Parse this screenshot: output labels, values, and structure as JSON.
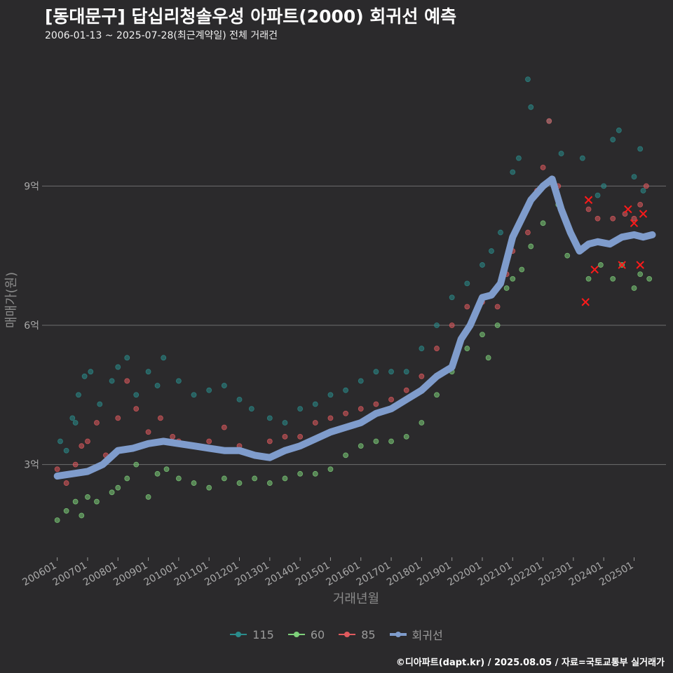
{
  "header": {
    "title": "[동대문구] 답십리청솔우성 아파트(2000) 회귀선 예측",
    "subtitle": "2006-01-13 ~ 2025-07-28(최근계약일) 전체 거래건"
  },
  "footer": {
    "credit": "©디아파트(dapt.kr) / 2025.08.05 / 자료=국토교통부 실거래가"
  },
  "colors": {
    "background": "#2b2a2c",
    "grid": "#6e6e6e",
    "s115": "#2a8c8c",
    "s60": "#7ed07a",
    "s85": "#e05a5e",
    "regression": "#7f9ccc",
    "outlier": "#ff1a1a"
  },
  "chart_data": {
    "type": "scatter",
    "title": "[동대문구] 답십리청솔우성 아파트(2000) 회귀선 예측",
    "subtitle": "2006-01-13 ~ 2025-07-28(최근계약일) 전체 거래건",
    "xlabel": "거래년월",
    "ylabel": "매매가(원)",
    "x_unit": "decimal year",
    "y_unit": "억 원",
    "xlim": [
      2005.5,
      2026.05
    ],
    "ylim": [
      1.0,
      11.8
    ],
    "yticks": [
      3,
      6,
      9
    ],
    "ytick_labels": [
      "3억",
      "6억",
      "9억"
    ],
    "xticks": [
      2006,
      2007,
      2008,
      2009,
      2010,
      2011,
      2012,
      2013,
      2014,
      2015,
      2016,
      2017,
      2018,
      2019,
      2020,
      2021,
      2022,
      2023,
      2024,
      2025
    ],
    "xtick_labels": [
      "200601",
      "200701",
      "200801",
      "200901",
      "201001",
      "201101",
      "201201",
      "201301",
      "201401",
      "201501",
      "201601",
      "201701",
      "201801",
      "201901",
      "202001",
      "202101",
      "202201",
      "202301",
      "202401",
      "202501"
    ],
    "legend": [
      {
        "key": "s115",
        "label": "115"
      },
      {
        "key": "s60",
        "label": "60"
      },
      {
        "key": "s85",
        "label": "85"
      },
      {
        "key": "regression",
        "label": "회귀선"
      }
    ],
    "legend_position": "bottom",
    "regression": {
      "x": [
        2006.0,
        2006.5,
        2007.0,
        2007.5,
        2008.0,
        2008.5,
        2009.0,
        2009.5,
        2010.0,
        2010.5,
        2011.0,
        2011.5,
        2012.0,
        2012.5,
        2013.0,
        2013.5,
        2014.0,
        2014.5,
        2015.0,
        2015.5,
        2016.0,
        2016.5,
        2017.0,
        2017.5,
        2018.0,
        2018.5,
        2019.0,
        2019.3,
        2019.6,
        2020.0,
        2020.3,
        2020.6,
        2021.0,
        2021.3,
        2021.6,
        2022.0,
        2022.3,
        2022.6,
        2022.9,
        2023.2,
        2023.5,
        2023.8,
        2024.2,
        2024.6,
        2025.0,
        2025.3,
        2025.6
      ],
      "y": [
        2.75,
        2.8,
        2.85,
        3.0,
        3.3,
        3.35,
        3.45,
        3.5,
        3.45,
        3.4,
        3.35,
        3.3,
        3.3,
        3.2,
        3.15,
        3.3,
        3.4,
        3.55,
        3.7,
        3.8,
        3.9,
        4.1,
        4.2,
        4.4,
        4.6,
        4.9,
        5.1,
        5.7,
        6.0,
        6.6,
        6.65,
        6.9,
        7.9,
        8.3,
        8.7,
        9.0,
        9.15,
        8.5,
        8.0,
        7.6,
        7.75,
        7.8,
        7.75,
        7.9,
        7.95,
        7.9,
        7.95
      ]
    },
    "series": [
      {
        "name": "115",
        "key": "s115",
        "points": [
          [
            2006.1,
            3.5
          ],
          [
            2006.3,
            3.3
          ],
          [
            2006.5,
            4.0
          ],
          [
            2006.6,
            3.9
          ],
          [
            2006.7,
            4.5
          ],
          [
            2006.9,
            4.9
          ],
          [
            2007.1,
            5.0
          ],
          [
            2007.4,
            4.3
          ],
          [
            2007.8,
            4.8
          ],
          [
            2008.0,
            5.1
          ],
          [
            2008.3,
            5.3
          ],
          [
            2008.6,
            4.5
          ],
          [
            2009.0,
            5.0
          ],
          [
            2009.3,
            4.7
          ],
          [
            2009.5,
            5.3
          ],
          [
            2010.0,
            4.8
          ],
          [
            2010.5,
            4.5
          ],
          [
            2011.0,
            4.6
          ],
          [
            2011.5,
            4.7
          ],
          [
            2012.0,
            4.4
          ],
          [
            2012.4,
            4.2
          ],
          [
            2013.0,
            4.0
          ],
          [
            2013.5,
            3.9
          ],
          [
            2014.0,
            4.2
          ],
          [
            2014.5,
            4.3
          ],
          [
            2015.0,
            4.5
          ],
          [
            2015.5,
            4.6
          ],
          [
            2016.0,
            4.8
          ],
          [
            2016.5,
            5.0
          ],
          [
            2017.0,
            5.0
          ],
          [
            2017.5,
            5.0
          ],
          [
            2018.0,
            5.5
          ],
          [
            2018.5,
            6.0
          ],
          [
            2019.0,
            6.6
          ],
          [
            2019.5,
            6.9
          ],
          [
            2020.0,
            7.3
          ],
          [
            2020.3,
            7.6
          ],
          [
            2020.6,
            8.0
          ],
          [
            2021.0,
            9.3
          ],
          [
            2021.2,
            9.6
          ],
          [
            2021.6,
            10.7
          ],
          [
            2021.5,
            11.3
          ],
          [
            2022.2,
            10.4
          ],
          [
            2022.6,
            9.7
          ],
          [
            2023.3,
            9.6
          ],
          [
            2023.8,
            8.8
          ],
          [
            2024.0,
            9.0
          ],
          [
            2024.3,
            10.0
          ],
          [
            2024.5,
            10.2
          ],
          [
            2025.0,
            9.2
          ],
          [
            2025.2,
            9.8
          ],
          [
            2025.3,
            8.9
          ]
        ]
      },
      {
        "name": "60",
        "key": "s60",
        "points": [
          [
            2006.0,
            1.8
          ],
          [
            2006.3,
            2.0
          ],
          [
            2006.6,
            2.2
          ],
          [
            2006.8,
            1.9
          ],
          [
            2007.0,
            2.3
          ],
          [
            2007.3,
            2.2
          ],
          [
            2007.8,
            2.4
          ],
          [
            2008.0,
            2.5
          ],
          [
            2008.3,
            2.7
          ],
          [
            2008.6,
            3.0
          ],
          [
            2009.0,
            2.3
          ],
          [
            2009.3,
            2.8
          ],
          [
            2009.6,
            2.9
          ],
          [
            2010.0,
            2.7
          ],
          [
            2010.5,
            2.6
          ],
          [
            2011.0,
            2.5
          ],
          [
            2011.5,
            2.7
          ],
          [
            2012.0,
            2.6
          ],
          [
            2012.5,
            2.7
          ],
          [
            2013.0,
            2.6
          ],
          [
            2013.5,
            2.7
          ],
          [
            2014.0,
            2.8
          ],
          [
            2014.5,
            2.8
          ],
          [
            2015.0,
            2.9
          ],
          [
            2015.5,
            3.2
          ],
          [
            2016.0,
            3.4
          ],
          [
            2016.5,
            3.5
          ],
          [
            2017.0,
            3.5
          ],
          [
            2017.5,
            3.6
          ],
          [
            2018.0,
            3.9
          ],
          [
            2018.5,
            4.5
          ],
          [
            2019.0,
            5.0
          ],
          [
            2019.5,
            5.5
          ],
          [
            2020.0,
            5.8
          ],
          [
            2020.2,
            5.3
          ],
          [
            2020.5,
            6.0
          ],
          [
            2020.8,
            6.8
          ],
          [
            2021.0,
            7.0
          ],
          [
            2021.3,
            7.2
          ],
          [
            2021.6,
            7.7
          ],
          [
            2022.0,
            8.2
          ],
          [
            2022.5,
            8.6
          ],
          [
            2022.8,
            7.5
          ],
          [
            2023.5,
            7.0
          ],
          [
            2023.9,
            7.3
          ],
          [
            2024.3,
            7.0
          ],
          [
            2024.6,
            7.3
          ],
          [
            2025.0,
            6.8
          ],
          [
            2025.2,
            7.1
          ],
          [
            2025.5,
            7.0
          ]
        ]
      },
      {
        "name": "85",
        "key": "s85",
        "points": [
          [
            2006.0,
            2.9
          ],
          [
            2006.3,
            2.6
          ],
          [
            2006.6,
            3.0
          ],
          [
            2006.8,
            3.4
          ],
          [
            2007.0,
            3.5
          ],
          [
            2007.3,
            3.9
          ],
          [
            2007.6,
            3.2
          ],
          [
            2008.0,
            4.0
          ],
          [
            2008.3,
            4.8
          ],
          [
            2008.6,
            4.2
          ],
          [
            2009.0,
            3.7
          ],
          [
            2009.4,
            4.0
          ],
          [
            2009.8,
            3.6
          ],
          [
            2010.0,
            3.5
          ],
          [
            2010.5,
            3.4
          ],
          [
            2011.0,
            3.5
          ],
          [
            2011.5,
            3.8
          ],
          [
            2012.0,
            3.4
          ],
          [
            2012.5,
            3.2
          ],
          [
            2013.0,
            3.5
          ],
          [
            2013.5,
            3.6
          ],
          [
            2014.0,
            3.6
          ],
          [
            2014.5,
            3.9
          ],
          [
            2015.0,
            4.0
          ],
          [
            2015.5,
            4.1
          ],
          [
            2016.0,
            4.2
          ],
          [
            2016.5,
            4.3
          ],
          [
            2017.0,
            4.4
          ],
          [
            2017.5,
            4.6
          ],
          [
            2018.0,
            4.9
          ],
          [
            2018.5,
            5.5
          ],
          [
            2019.0,
            6.0
          ],
          [
            2019.5,
            6.4
          ],
          [
            2020.0,
            6.5
          ],
          [
            2020.5,
            6.4
          ],
          [
            2020.8,
            7.1
          ],
          [
            2021.0,
            7.6
          ],
          [
            2021.5,
            8.0
          ],
          [
            2021.8,
            8.9
          ],
          [
            2022.0,
            9.4
          ],
          [
            2022.2,
            10.4
          ],
          [
            2022.5,
            9.0
          ],
          [
            2023.5,
            8.5
          ],
          [
            2023.8,
            8.3
          ],
          [
            2024.3,
            8.3
          ],
          [
            2024.7,
            8.4
          ],
          [
            2025.0,
            8.3
          ],
          [
            2025.2,
            8.6
          ],
          [
            2025.4,
            9.0
          ]
        ]
      }
    ],
    "outliers": [
      [
        2023.5,
        8.7
      ],
      [
        2023.7,
        7.2
      ],
      [
        2023.4,
        6.5
      ],
      [
        2024.6,
        7.3
      ],
      [
        2024.8,
        8.5
      ],
      [
        2025.0,
        8.2
      ],
      [
        2025.2,
        7.3
      ],
      [
        2025.3,
        8.4
      ]
    ]
  }
}
